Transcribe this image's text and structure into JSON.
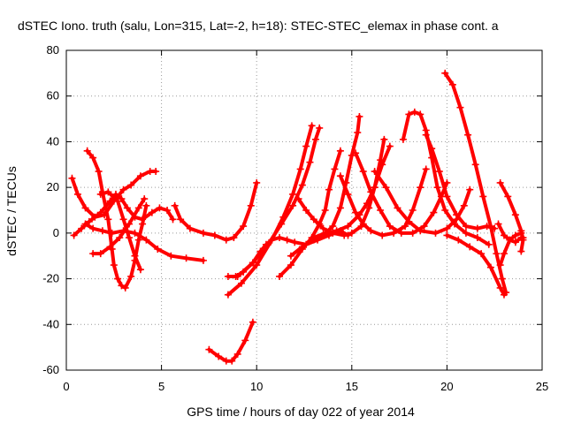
{
  "chart_data": {
    "type": "scatter",
    "title": "dSTEC Iono. truth (salu, Lon=315, Lat=-2, h=18): STEC-STEC_elemax in phase cont. a",
    "xlabel": "GPS time / hours of day 022 of year 2014",
    "ylabel": "dSTEC  / TECUs",
    "xlim": [
      0,
      25
    ],
    "ylim": [
      -60,
      80
    ],
    "xticks": [
      0,
      5,
      10,
      15,
      20,
      25
    ],
    "yticks": [
      -60,
      -40,
      -20,
      0,
      20,
      40,
      60,
      80
    ],
    "grid": true,
    "marker": "+",
    "color": "#ff0000",
    "series": [
      {
        "points": [
          [
            0.3,
            24
          ],
          [
            0.6,
            17
          ],
          [
            1.0,
            11
          ],
          [
            1.5,
            7
          ],
          [
            2.0,
            8
          ],
          [
            2.5,
            14
          ],
          [
            3.0,
            19
          ],
          [
            3.4,
            21
          ],
          [
            3.9,
            25
          ],
          [
            4.4,
            27
          ],
          [
            4.7,
            27
          ]
        ]
      },
      {
        "points": [
          [
            0.4,
            -1
          ],
          [
            0.8,
            2
          ],
          [
            1.2,
            5
          ],
          [
            1.8,
            9
          ],
          [
            2.3,
            14
          ],
          [
            2.6,
            17
          ],
          [
            2.9,
            15
          ],
          [
            3.2,
            11
          ],
          [
            3.6,
            7
          ],
          [
            4.0,
            6
          ],
          [
            4.5,
            9
          ],
          [
            4.9,
            11
          ],
          [
            5.3,
            10
          ],
          [
            5.6,
            6
          ]
        ]
      },
      {
        "points": [
          [
            1.0,
            4
          ],
          [
            1.4,
            2
          ],
          [
            1.9,
            1
          ],
          [
            2.4,
            0
          ],
          [
            3.0,
            1
          ],
          [
            3.6,
            0
          ],
          [
            4.2,
            -3
          ],
          [
            4.8,
            -7
          ],
          [
            5.5,
            -10
          ],
          [
            6.3,
            -11
          ],
          [
            7.2,
            -12
          ]
        ]
      },
      {
        "points": [
          [
            1.1,
            36
          ],
          [
            1.4,
            33
          ],
          [
            1.7,
            27
          ],
          [
            1.9,
            18
          ],
          [
            2.2,
            6
          ],
          [
            2.4,
            -7
          ],
          [
            2.5,
            -14
          ],
          [
            2.7,
            -20
          ],
          [
            2.9,
            -23
          ],
          [
            3.1,
            -24
          ],
          [
            3.4,
            -19
          ],
          [
            3.6,
            -12
          ],
          [
            3.8,
            -3
          ],
          [
            4.0,
            4
          ],
          [
            4.2,
            12
          ]
        ]
      },
      {
        "points": [
          [
            1.4,
            -9
          ],
          [
            1.8,
            -9
          ],
          [
            2.3,
            -6
          ],
          [
            2.8,
            -2
          ],
          [
            3.3,
            4
          ],
          [
            3.8,
            11
          ],
          [
            4.1,
            15
          ]
        ]
      },
      {
        "points": [
          [
            1.8,
            17
          ],
          [
            2.2,
            18
          ],
          [
            2.7,
            14
          ],
          [
            3.0,
            6
          ],
          [
            3.3,
            -2
          ],
          [
            3.6,
            -10
          ],
          [
            3.9,
            -16
          ]
        ]
      },
      {
        "points": [
          [
            5.7,
            12
          ],
          [
            6.0,
            6
          ],
          [
            6.5,
            2
          ],
          [
            7.2,
            0
          ],
          [
            7.8,
            -1
          ],
          [
            8.4,
            -3
          ],
          [
            8.8,
            -2
          ],
          [
            9.3,
            3
          ],
          [
            9.7,
            12
          ],
          [
            10.0,
            22
          ]
        ]
      },
      {
        "points": [
          [
            7.5,
            -51
          ],
          [
            8.0,
            -54
          ],
          [
            8.4,
            -56
          ],
          [
            8.7,
            -56
          ],
          [
            9.0,
            -53
          ],
          [
            9.4,
            -47
          ],
          [
            9.8,
            -39
          ]
        ]
      },
      {
        "points": [
          [
            8.5,
            -19
          ],
          [
            8.9,
            -19
          ],
          [
            9.3,
            -17
          ],
          [
            9.8,
            -13
          ],
          [
            10.2,
            -8
          ],
          [
            10.5,
            -5
          ],
          [
            10.8,
            -3
          ],
          [
            11.2,
            -2
          ],
          [
            11.6,
            -3
          ],
          [
            12.0,
            -4
          ],
          [
            12.6,
            -5
          ],
          [
            13.2,
            -3
          ],
          [
            13.8,
            -1
          ],
          [
            14.4,
            1
          ],
          [
            14.8,
            -1
          ]
        ]
      },
      {
        "points": [
          [
            8.5,
            -27
          ],
          [
            9.2,
            -22
          ],
          [
            10.0,
            -14
          ],
          [
            10.8,
            -3
          ],
          [
            11.4,
            7
          ],
          [
            11.9,
            17
          ],
          [
            12.3,
            28
          ],
          [
            12.6,
            38
          ],
          [
            12.9,
            47
          ]
        ]
      },
      {
        "points": [
          [
            9.0,
            -19
          ],
          [
            9.8,
            -13
          ],
          [
            10.6,
            -5
          ],
          [
            11.3,
            4
          ],
          [
            11.9,
            12
          ],
          [
            12.4,
            21
          ],
          [
            12.8,
            31
          ],
          [
            13.1,
            41
          ],
          [
            13.3,
            46
          ]
        ]
      },
      {
        "points": [
          [
            11.2,
            -19
          ],
          [
            11.8,
            -14
          ],
          [
            12.4,
            -7
          ],
          [
            12.9,
            -2
          ],
          [
            13.3,
            4
          ],
          [
            13.6,
            10
          ],
          [
            13.8,
            19
          ],
          [
            14.1,
            28
          ],
          [
            14.4,
            36
          ]
        ]
      },
      {
        "points": [
          [
            11.8,
            -10
          ],
          [
            12.4,
            -6
          ],
          [
            13.0,
            -3
          ],
          [
            13.5,
            -1
          ],
          [
            14.0,
            3
          ],
          [
            14.4,
            11
          ],
          [
            14.7,
            22
          ],
          [
            15.0,
            34
          ],
          [
            15.3,
            44
          ],
          [
            15.4,
            51
          ]
        ]
      },
      {
        "points": [
          [
            12.2,
            15
          ],
          [
            12.6,
            10
          ],
          [
            13.0,
            6
          ],
          [
            13.5,
            2
          ],
          [
            14.0,
            0
          ],
          [
            14.6,
            -1
          ],
          [
            15.0,
            0
          ],
          [
            15.5,
            3
          ],
          [
            15.9,
            11
          ],
          [
            16.2,
            20
          ],
          [
            16.5,
            32
          ],
          [
            16.7,
            41
          ]
        ]
      },
      {
        "points": [
          [
            13.0,
            -2
          ],
          [
            13.6,
            0
          ],
          [
            14.2,
            1
          ],
          [
            14.8,
            3
          ],
          [
            15.4,
            8
          ],
          [
            15.8,
            13
          ],
          [
            16.2,
            20
          ],
          [
            16.6,
            30
          ],
          [
            17.0,
            38
          ]
        ]
      },
      {
        "points": [
          [
            14.4,
            25
          ],
          [
            14.8,
            17
          ],
          [
            15.2,
            9
          ],
          [
            15.6,
            4
          ],
          [
            16.0,
            1
          ],
          [
            16.6,
            -1
          ],
          [
            17.2,
            0
          ],
          [
            17.8,
            3
          ],
          [
            18.2,
            10
          ],
          [
            18.6,
            20
          ],
          [
            18.9,
            28
          ]
        ]
      },
      {
        "points": [
          [
            15.2,
            35
          ],
          [
            15.6,
            27
          ],
          [
            16.0,
            18
          ],
          [
            16.5,
            10
          ],
          [
            17.0,
            3
          ],
          [
            17.6,
            0
          ],
          [
            18.2,
            0
          ],
          [
            18.8,
            3
          ],
          [
            19.3,
            9
          ],
          [
            19.7,
            16
          ],
          [
            20.0,
            22
          ]
        ]
      },
      {
        "points": [
          [
            16.2,
            27
          ],
          [
            16.8,
            20
          ],
          [
            17.4,
            11
          ],
          [
            18.0,
            5
          ],
          [
            18.6,
            1
          ],
          [
            19.4,
            0
          ],
          [
            20.0,
            2
          ],
          [
            20.5,
            6
          ],
          [
            20.9,
            12
          ],
          [
            21.2,
            19
          ]
        ]
      },
      {
        "points": [
          [
            17.7,
            41
          ],
          [
            18.0,
            52
          ],
          [
            18.3,
            53
          ],
          [
            18.6,
            52
          ],
          [
            18.9,
            45
          ],
          [
            19.2,
            33
          ],
          [
            19.5,
            20
          ],
          [
            19.9,
            10
          ],
          [
            20.4,
            4
          ],
          [
            21.0,
            0
          ],
          [
            21.6,
            -2
          ],
          [
            22.2,
            -5
          ]
        ]
      },
      {
        "points": [
          [
            18.9,
            43
          ],
          [
            19.2,
            37
          ],
          [
            19.6,
            27
          ],
          [
            20.0,
            16
          ],
          [
            20.5,
            8
          ],
          [
            21.0,
            3
          ],
          [
            21.6,
            2
          ],
          [
            22.1,
            3
          ],
          [
            22.5,
            2
          ]
        ]
      },
      {
        "points": [
          [
            19.9,
            70
          ],
          [
            20.3,
            65
          ],
          [
            20.7,
            55
          ],
          [
            21.1,
            43
          ],
          [
            21.5,
            30
          ],
          [
            21.9,
            16
          ],
          [
            22.3,
            3
          ],
          [
            22.6,
            -9
          ],
          [
            22.9,
            -20
          ],
          [
            23.1,
            -26
          ]
        ]
      },
      {
        "points": [
          [
            20.0,
            -1
          ],
          [
            20.6,
            -3
          ],
          [
            21.2,
            -6
          ],
          [
            21.8,
            -9
          ],
          [
            22.3,
            -15
          ],
          [
            22.8,
            -24
          ],
          [
            23.0,
            -27
          ]
        ]
      },
      {
        "points": [
          [
            22.8,
            22
          ],
          [
            23.2,
            16
          ],
          [
            23.6,
            8
          ],
          [
            23.9,
            1
          ],
          [
            24.0,
            -3
          ],
          [
            23.9,
            -8
          ]
        ]
      },
      {
        "points": [
          [
            22.8,
            -14
          ],
          [
            23.0,
            -9
          ],
          [
            23.3,
            -3
          ],
          [
            23.6,
            -1
          ],
          [
            23.9,
            0
          ],
          [
            24.0,
            -2
          ]
        ]
      },
      {
        "points": [
          [
            22.7,
            4
          ],
          [
            23.0,
            -1
          ],
          [
            23.3,
            -3
          ],
          [
            23.6,
            -4
          ],
          [
            23.9,
            -2
          ]
        ]
      }
    ]
  }
}
